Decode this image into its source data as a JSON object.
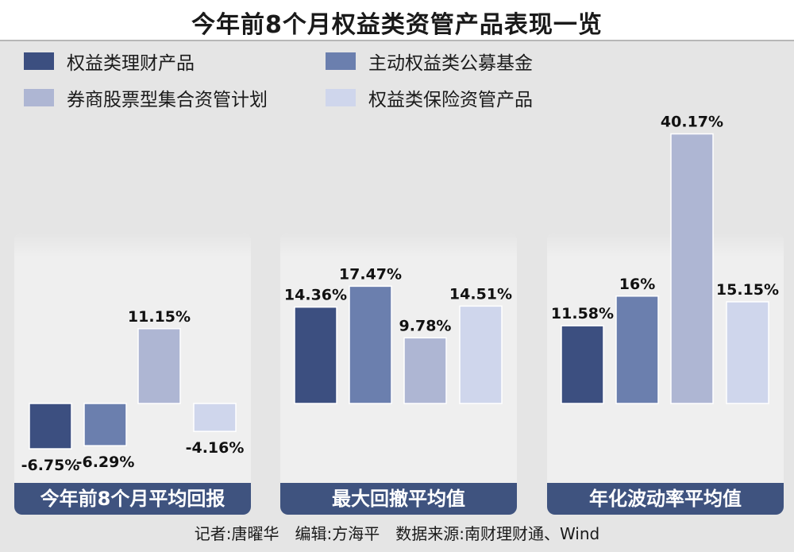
{
  "title": "今年前8个月权益类资管产品表现一览",
  "legend": [
    {
      "label": "权益类理财产品",
      "color": "#3c4f80"
    },
    {
      "label": "主动权益类公募基金",
      "color": "#6b7fae"
    },
    {
      "label": "券商股票型集合资管计划",
      "color": "#aeb6d3"
    },
    {
      "label": "权益类保险资管产品",
      "color": "#cfd6ec"
    }
  ],
  "chart_data": [
    {
      "type": "bar",
      "title": "今年前8个月平均回报",
      "series": [
        {
          "name": "权益类理财产品",
          "value": -6.75,
          "label": "-6.75%"
        },
        {
          "name": "主动权益类公募基金",
          "value": -6.29,
          "label": "-6.29%"
        },
        {
          "name": "券商股票型集合资管计划",
          "value": 11.15,
          "label": "11.15%"
        },
        {
          "name": "权益类保险资管产品",
          "value": -4.16,
          "label": "-4.16%"
        }
      ]
    },
    {
      "type": "bar",
      "title": "最大回撤平均值",
      "series": [
        {
          "name": "权益类理财产品",
          "value": 14.36,
          "label": "14.36%"
        },
        {
          "name": "主动权益类公募基金",
          "value": 17.47,
          "label": "17.47%"
        },
        {
          "name": "券商股票型集合资管计划",
          "value": 9.78,
          "label": "9.78%"
        },
        {
          "name": "权益类保险资管产品",
          "value": 14.51,
          "label": "14.51%"
        }
      ]
    },
    {
      "type": "bar",
      "title": "年化波动率平均值",
      "series": [
        {
          "name": "权益类理财产品",
          "value": 11.58,
          "label": "11.58%"
        },
        {
          "name": "主动权益类公募基金",
          "value": 16,
          "label": "16%"
        },
        {
          "name": "券商股票型集合资管计划",
          "value": 40.17,
          "label": "40.17%"
        },
        {
          "name": "权益类保险资管产品",
          "value": 15.15,
          "label": "15.15%"
        }
      ]
    }
  ],
  "footer": "记者:唐曜华　编辑:方海平　数据来源:南财理财通、Wind"
}
